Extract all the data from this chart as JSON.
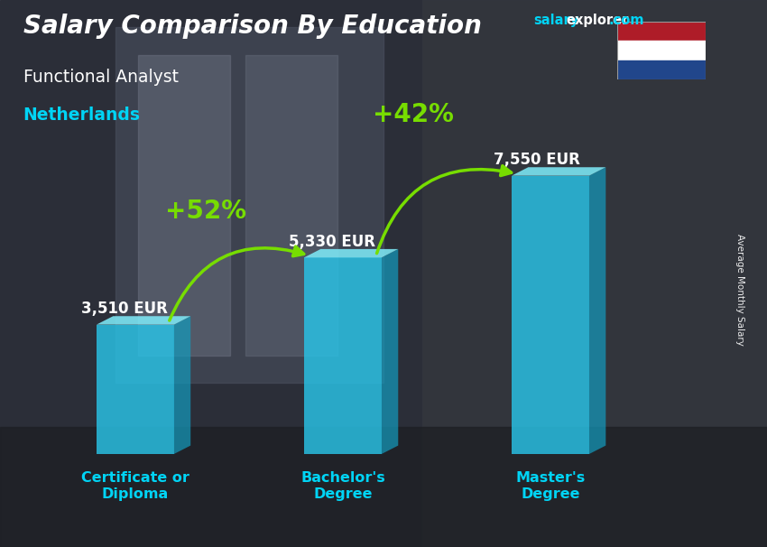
{
  "title_main": "Salary Comparison By Education",
  "title_sub": "Functional Analyst",
  "title_country": "Netherlands",
  "categories": [
    "Certificate or\nDiploma",
    "Bachelor's\nDegree",
    "Master's\nDegree"
  ],
  "values": [
    3510,
    5330,
    7550
  ],
  "value_labels": [
    "3,510 EUR",
    "5,330 EUR",
    "7,550 EUR"
  ],
  "pct_labels": [
    "+52%",
    "+42%"
  ],
  "bar_front": "#29C4E8",
  "bar_top": "#7EEAF8",
  "bar_side": "#1499BB",
  "bar_alpha": 0.82,
  "bg_dark": "#3a3d4a",
  "bg_mid": "#4a5060",
  "text_white": "#ffffff",
  "text_cyan": "#00d4f5",
  "text_green": "#77dd00",
  "arrow_green": "#77dd00",
  "site_salary": "#00d4f5",
  "site_rest": "#ffffff",
  "ylabel": "Average Monthly Salary",
  "figsize": [
    8.5,
    6.06
  ],
  "dpi": 100,
  "bar_width": 0.28,
  "ylim_max": 9200,
  "flag_red": "#AE1C28",
  "flag_white": "#FFFFFF",
  "flag_blue": "#21468B"
}
